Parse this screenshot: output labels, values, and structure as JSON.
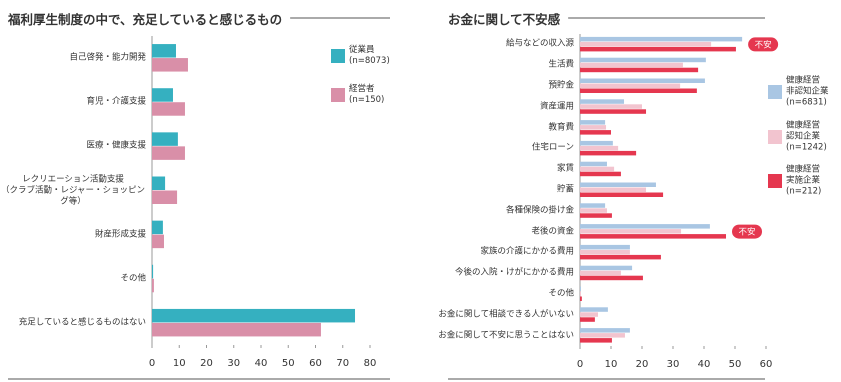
{
  "chart_data": [
    {
      "type": "bar",
      "orientation": "horizontal",
      "title": "福利厚生制度の中で、充足していると感じるもの",
      "categories": [
        "自己啓発・能力開発",
        "育児・介護支援",
        "医療・健康支援",
        "レクリエーション活動支援\n（クラブ活動・レジャー・ショッピング等）",
        "財産形成支援",
        "その他",
        "充足していると感じるものはない"
      ],
      "series": [
        {
          "name": "従業員\n(n=8073)",
          "color": "#35b0c0",
          "values": [
            8.8,
            7.7,
            9.5,
            4.8,
            4.0,
            0.4,
            74.5
          ]
        },
        {
          "name": "経営者\n(n=150)",
          "color": "#d98fa8",
          "values": [
            13.2,
            12.1,
            12.1,
            9.2,
            4.4,
            0.7,
            62
          ]
        }
      ],
      "xlim": [
        0,
        80
      ],
      "xticks": [
        0,
        10,
        20,
        30,
        40,
        50,
        60,
        70,
        80
      ],
      "grid": false,
      "legend": "upper right"
    },
    {
      "type": "bar",
      "orientation": "horizontal",
      "title": "お金に関して不安感",
      "categories": [
        "給与などの収入源",
        "生活費",
        "預貯金",
        "資産運用",
        "教育費",
        "住宅ローン",
        "家賃",
        "貯蓄",
        "各種保険の掛け金",
        "老後の資金",
        "家族の介護にかかる費用",
        "今後の入院・けがにかかる費用",
        "その他",
        "お金に関して相談できる人がいない",
        "お金に関して不安に思うことはない"
      ],
      "series": [
        {
          "name": "健康経営\n非認知企業\n(n=6831)",
          "color": "#a9c6e3",
          "values": [
            52.3,
            40.6,
            40.3,
            14.2,
            8.1,
            10.6,
            8.7,
            24.5,
            8.1,
            41.9,
            16.1,
            16.8,
            0.3,
            9,
            16.1
          ]
        },
        {
          "name": "健康経営\n認知企業\n(n=1242)",
          "color": "#f2c4cf",
          "values": [
            42.3,
            33.2,
            32.3,
            20,
            8.4,
            12.3,
            11,
            21.3,
            8.7,
            32.6,
            16.1,
            13.2,
            0.3,
            5.8,
            14.5
          ]
        },
        {
          "name": "健康経営\n実施企業\n(n=212)",
          "color": "#e5374f",
          "values": [
            50.3,
            38.1,
            37.7,
            21.3,
            10,
            18.1,
            13.2,
            26.8,
            10.3,
            47.1,
            26.1,
            20.3,
            0.6,
            4.8,
            10.3
          ]
        }
      ],
      "xlim": [
        0,
        60
      ],
      "xticks": [
        0,
        10,
        20,
        30,
        40,
        50,
        60
      ],
      "grid": false,
      "legend": "right",
      "annotations": [
        {
          "text": "不安",
          "category": "給与などの収入源"
        },
        {
          "text": "不安",
          "category": "老後の資金"
        }
      ]
    }
  ]
}
